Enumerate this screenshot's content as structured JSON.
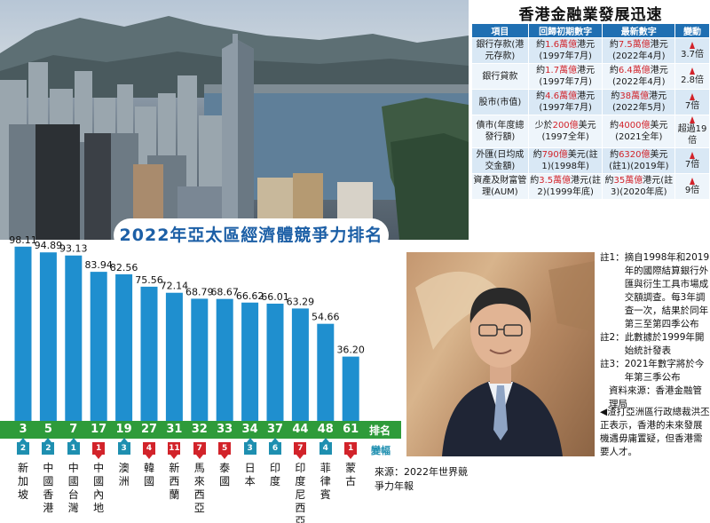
{
  "chart_data": {
    "type": "bar",
    "title": "2022年亞太區經濟體競爭力排名",
    "categories": [
      "新加坡",
      "中國香港",
      "中國台灣",
      "中國內地",
      "澳洲",
      "韓國",
      "新西蘭",
      "馬來西亞",
      "泰國",
      "日本",
      "印度",
      "印度尼西亞",
      "菲律賓",
      "蒙古"
    ],
    "values": [
      98.11,
      94.89,
      93.13,
      83.94,
      82.56,
      75.56,
      72.14,
      68.79,
      68.67,
      66.62,
      66.01,
      63.29,
      54.66,
      36.2
    ],
    "value_labels": [
      "98.11",
      "94.89",
      "93.13",
      "83.94",
      "82.56",
      "75.56",
      "72.14",
      "68.79",
      "68.67",
      "66.62",
      "66.01",
      "63.29",
      "54.66",
      "36.20"
    ],
    "ranks": [
      "3",
      "5",
      "7",
      "17",
      "19",
      "27",
      "31",
      "32",
      "33",
      "34",
      "37",
      "44",
      "48",
      "61"
    ],
    "changes": [
      {
        "value": "2",
        "direction": "up"
      },
      {
        "value": "2",
        "direction": "up"
      },
      {
        "value": "1",
        "direction": "up"
      },
      {
        "value": "1",
        "direction": "down"
      },
      {
        "value": "3",
        "direction": "up"
      },
      {
        "value": "4",
        "direction": "down"
      },
      {
        "value": "11",
        "direction": "down"
      },
      {
        "value": "7",
        "direction": "down"
      },
      {
        "value": "5",
        "direction": "down"
      },
      {
        "value": "3",
        "direction": "up"
      },
      {
        "value": "6",
        "direction": "up"
      },
      {
        "value": "7",
        "direction": "down"
      },
      {
        "value": "4",
        "direction": "up"
      },
      {
        "value": "1",
        "direction": "down"
      }
    ],
    "rank_label": "排名",
    "change_label": "變幅",
    "ylim": [
      0,
      100
    ],
    "bar_color": "#1f8fcf",
    "up_color": "#1e8fb0",
    "down_color": "#d2232a"
  },
  "source": "來源：2022年世界競爭力年報",
  "table": {
    "title": "香港金融業發展迅速",
    "headers": [
      "項目",
      "回歸初期數字",
      "最新數字",
      "變動"
    ],
    "rows": [
      {
        "item": "銀行存款(港元存款)",
        "before_pre": "約",
        "before_hl": "1.6萬億",
        "before_post": "港元(1997年7月)",
        "latest_pre": "約",
        "latest_hl": "7.5萬億",
        "latest_post": "港元(2022年4月)",
        "change": "3.7倍"
      },
      {
        "item": "銀行貸款",
        "before_pre": "約",
        "before_hl": "1.7萬億",
        "before_post": "港元(1997年7月)",
        "latest_pre": "約",
        "latest_hl": "6.4萬億",
        "latest_post": "港元(2022年4月)",
        "change": "2.8倍"
      },
      {
        "item": "股市(市值)",
        "before_pre": "約",
        "before_hl": "4.6萬億",
        "before_post": "港元(1997年7月)",
        "latest_pre": "約",
        "latest_hl": "38萬億",
        "latest_post": "港元(2022年5月)",
        "change": "7倍"
      },
      {
        "item": "債市(年度總發行額)",
        "before_pre": "少於",
        "before_hl": "200億",
        "before_post": "美元(1997全年)",
        "latest_pre": "約",
        "latest_hl": "4000億",
        "latest_post": "美元(2021全年)",
        "change": "超過19倍"
      },
      {
        "item": "外匯(日均成交金額)",
        "before_pre": "約",
        "before_hl": "790億",
        "before_post": "美元(註1)(1998年)",
        "latest_pre": "約",
        "latest_hl": "6320億",
        "latest_post": "美元(註1)(2019年)",
        "change": "7倍"
      },
      {
        "item": "資產及財富管理(AUM)",
        "before_pre": "約",
        "before_hl": "3.5萬億",
        "before_post": "港元(註2)(1999年底)",
        "latest_pre": "約",
        "latest_hl": "35萬億",
        "latest_post": "港元(註3)(2020年底)",
        "change": "9倍"
      }
    ]
  },
  "notes": [
    {
      "key": "註1：",
      "text": "摘自1998年和2019年的國際結算銀行外匯與衍生工具市場成交額調查。每3年調查一次，結果於同年第三至第四季公布"
    },
    {
      "key": "註2：",
      "text": "此數據於1999年開始統計發表"
    },
    {
      "key": "註3：",
      "text": "2021年數字將於今年第三季公布"
    }
  ],
  "data_source": "資料來源：香港金融管理局",
  "caption": "◀渣打亞洲區行政總裁洪丕正表示，香港的未來發展機遇毋庸置疑，但香港需要人才。"
}
